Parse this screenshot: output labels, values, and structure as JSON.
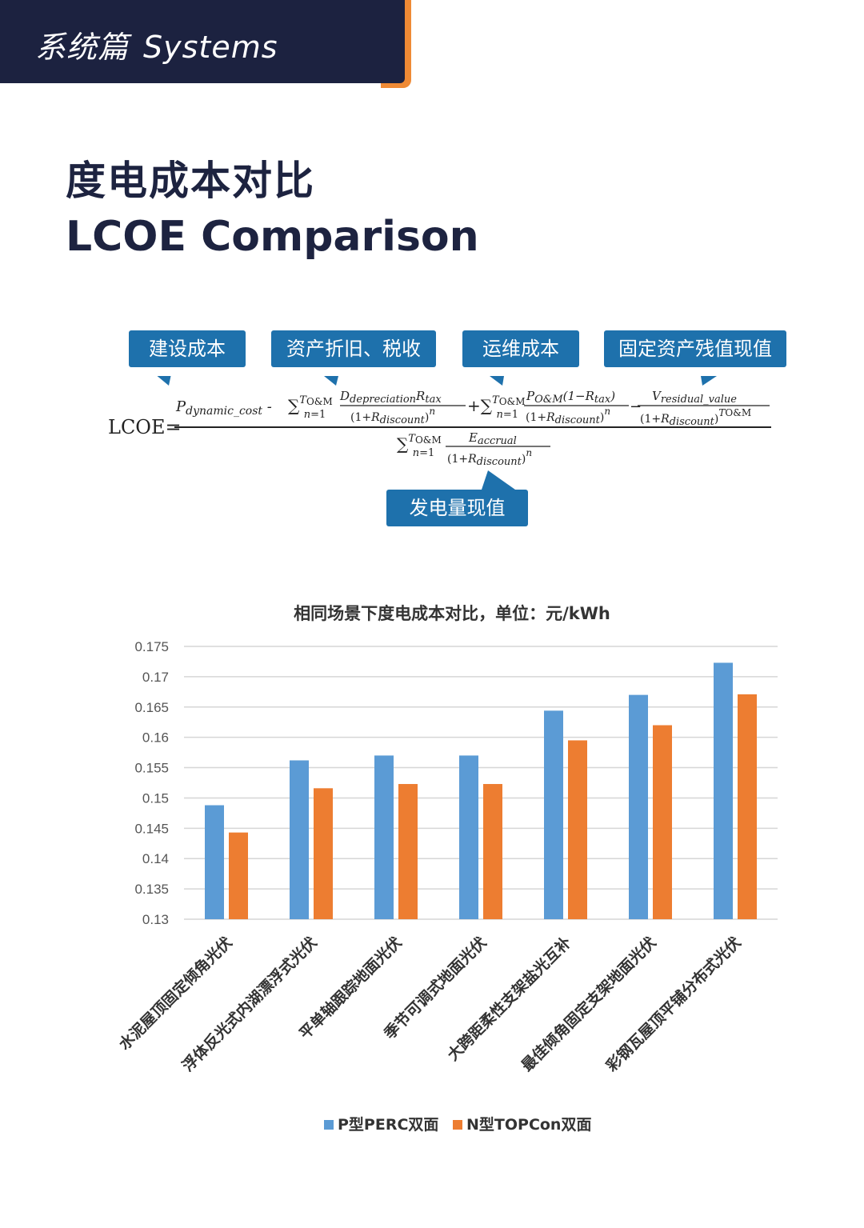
{
  "header": {
    "section_zh": "系统篇",
    "section_en": "Systems"
  },
  "page": {
    "title_zh": "度电成本对比",
    "title_en": "LCOE Comparison"
  },
  "formula": {
    "lhs": "LCOE=",
    "callouts": [
      "建设成本",
      "资产折旧、税收",
      "运维成本",
      "固定资产残值现值",
      "发电量现值"
    ]
  },
  "colors": {
    "navy": "#1c2240",
    "orange_accent": "#ef8a35",
    "callout_blue": "#1e71ac",
    "series_blue": "#5b9bd5",
    "series_orange": "#ed7d31"
  },
  "chart_data": {
    "type": "bar",
    "title": "相同场景下度电成本对比，单位：元/kWh",
    "categories": [
      "水泥屋顶固定倾角光伏",
      "浮体反光式内湖漂浮式光伏",
      "平单轴跟踪地面光伏",
      "季节可调式地面光伏",
      "大跨距柔性支架盐光互补",
      "最佳倾角固定支架地面光伏",
      "彩钢瓦屋顶平铺分布式光伏"
    ],
    "series": [
      {
        "name": "P型PERC双面",
        "values": [
          0.1488,
          0.1562,
          0.157,
          0.157,
          0.1644,
          0.167,
          0.1723
        ]
      },
      {
        "name": "N型TOPCon双面",
        "values": [
          0.1443,
          0.1516,
          0.1523,
          0.1523,
          0.1595,
          0.162,
          0.1671
        ]
      }
    ],
    "ylim": [
      0.13,
      0.175
    ],
    "yticks": [
      "0.175",
      "0.17",
      "0.165",
      "0.16",
      "0.155",
      "0.15",
      "0.145",
      "0.14",
      "0.135",
      "0.13"
    ],
    "grid": true,
    "legend": "bottom"
  }
}
